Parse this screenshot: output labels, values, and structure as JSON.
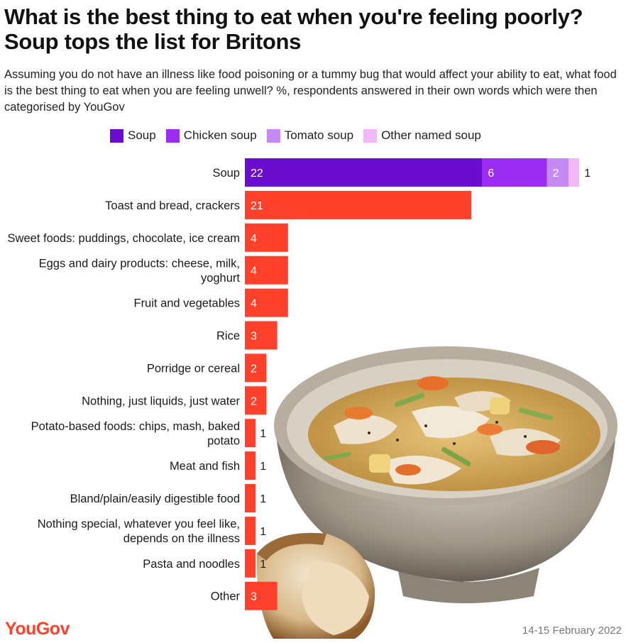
{
  "title": "What is the best thing to eat when you're feeling poorly? Soup tops the list for Britons",
  "subtitle": "Assuming you do not have an illness like food poisoning or a tummy bug that would affect your ability to eat, what food is the best thing to eat when you are feeling unwell? %, respondents answered in their own words which were then categorised by YouGov",
  "footer": {
    "brand": "YouGov",
    "date": "14-15 February 2022"
  },
  "colors": {
    "soup": "#6a0dcf",
    "chicken_soup": "#9b2cf2",
    "tomato_soup": "#c58af3",
    "other_named_soup": "#f3b8f7",
    "default_bar": "#ff412c"
  },
  "chart_data": {
    "type": "bar",
    "orientation": "horizontal",
    "stacked": true,
    "legend": [
      "Soup",
      "Chicken soup",
      "Tomato soup",
      "Other named soup"
    ],
    "legend_placement": "top",
    "categories": [
      "Soup",
      "Toast and bread, crackers",
      "Sweet foods: puddings, chocolate, ice cream",
      "Eggs and dairy products: cheese, milk, yoghurt",
      "Fruit and vegetables",
      "Rice",
      "Porridge or cereal",
      "Nothing, just liquids, just water",
      "Potato-based foods: chips, mash, baked potato",
      "Meat and fish",
      "Bland/plain/easily digestible food",
      "Nothing special, whatever you feel like, depends on the illness",
      "Pasta and noodles",
      "Other"
    ],
    "values": [
      22,
      21,
      4,
      4,
      4,
      3,
      2,
      2,
      1,
      1,
      1,
      1,
      1,
      3
    ],
    "soup_breakdown": [
      {
        "name": "Soup",
        "value": 22
      },
      {
        "name": "Chicken soup",
        "value": 6
      },
      {
        "name": "Tomato soup",
        "value": 2
      },
      {
        "name": "Other named soup",
        "value": 1
      }
    ],
    "xlim": [
      0,
      33
    ],
    "grid": false
  }
}
